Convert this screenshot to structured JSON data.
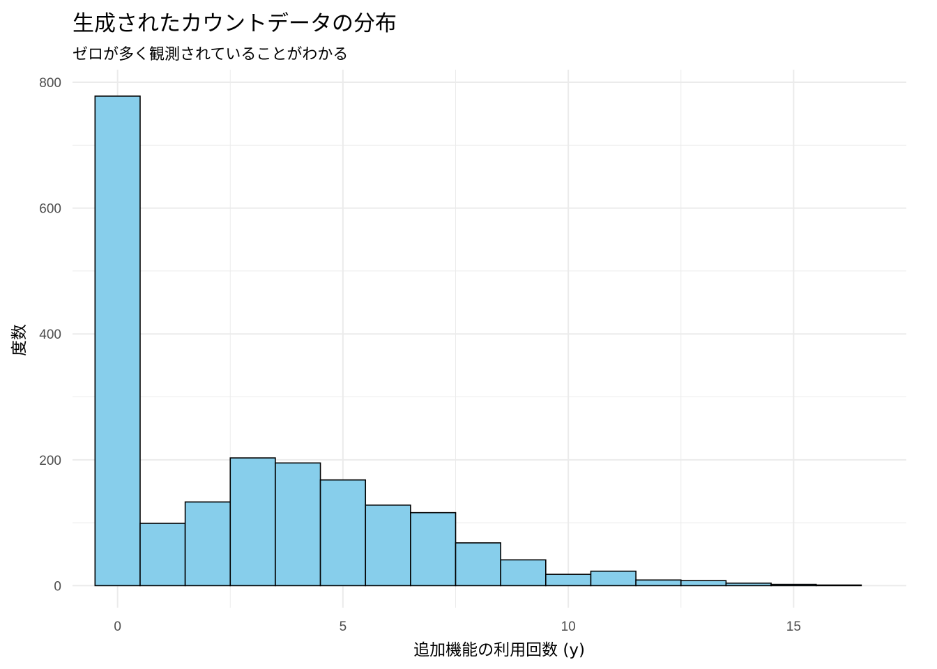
{
  "chart_data": {
    "type": "bar",
    "title": "生成されたカウントデータの分布",
    "subtitle": "ゼロが多く観測されていることがわかる",
    "xlabel": "追加機能の利用回数 (y)",
    "ylabel": "度数",
    "x": [
      0,
      1,
      2,
      3,
      4,
      5,
      6,
      7,
      8,
      9,
      10,
      11,
      12,
      13,
      14,
      15,
      16
    ],
    "values": [
      778,
      99,
      133,
      203,
      195,
      168,
      128,
      116,
      68,
      41,
      18,
      23,
      9,
      8,
      4,
      2,
      1
    ],
    "bin_width": 1,
    "xlim": [
      -1,
      17.5
    ],
    "ylim": [
      -35,
      820
    ],
    "x_ticks": [
      "0",
      "5",
      "10",
      "15"
    ],
    "y_ticks": [
      "0",
      "200",
      "400",
      "600",
      "800"
    ],
    "grid": true,
    "legend": "none",
    "bar_fill": "#87CEEB",
    "bar_stroke": "#000000",
    "grid_color": "#ebebeb"
  }
}
